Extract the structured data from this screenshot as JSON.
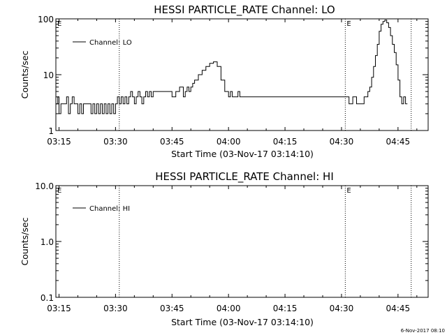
{
  "figure": {
    "footer_stamp": "6-Nov-2017 08:10"
  },
  "chart_data": [
    {
      "type": "line",
      "title": "HESSI PARTICLE_RATE Channel: LO",
      "xlabel": "Start Time (03-Nov-17 03:14:10)",
      "ylabel": "Counts/sec",
      "y_scale": "log",
      "xlim": [
        "03:14:10",
        "04:53:00"
      ],
      "ylim": [
        1,
        100
      ],
      "x_ticks": [
        "03:15",
        "03:30",
        "03:45",
        "04:00",
        "04:15",
        "04:30",
        "04:45"
      ],
      "y_ticks": [
        "1",
        "10",
        "100"
      ],
      "legend": {
        "label": "Channel: LO",
        "placement": "top-left"
      },
      "grid": false,
      "event_lines": [
        {
          "time": "03:31:00",
          "label": ""
        },
        {
          "time": "04:31:00",
          "label": "E"
        },
        {
          "time": "04:48:30",
          "label": ""
        }
      ],
      "corner_marks": [
        "E"
      ],
      "series": [
        {
          "name": "Channel: LO",
          "x": [
            "03:14:10",
            "03:14:40",
            "03:15:00",
            "03:15:30",
            "03:16:00",
            "03:16:30",
            "03:17:00",
            "03:17:30",
            "03:18:00",
            "03:18:30",
            "03:19:00",
            "03:19:30",
            "03:20:00",
            "03:20:30",
            "03:21:00",
            "03:21:30",
            "03:22:00",
            "03:22:30",
            "03:23:00",
            "03:23:30",
            "03:24:00",
            "03:24:30",
            "03:25:00",
            "03:25:30",
            "03:26:00",
            "03:26:30",
            "03:27:00",
            "03:27:30",
            "03:28:00",
            "03:28:30",
            "03:29:00",
            "03:29:30",
            "03:30:00",
            "03:30:30",
            "03:31:00",
            "03:31:30",
            "03:32:00",
            "03:32:30",
            "03:33:00",
            "03:33:30",
            "03:34:00",
            "03:34:30",
            "03:35:00",
            "03:35:30",
            "03:36:00",
            "03:36:30",
            "03:37:00",
            "03:37:30",
            "03:38:00",
            "03:38:30",
            "03:39:00",
            "03:39:30",
            "03:40:00",
            "03:41:00",
            "03:42:00",
            "03:43:00",
            "03:44:00",
            "03:45:00",
            "03:46:00",
            "03:47:00",
            "03:48:00",
            "03:48:30",
            "03:49:00",
            "03:49:30",
            "03:50:00",
            "03:50:30",
            "03:51:00",
            "03:52:00",
            "03:53:00",
            "03:54:00",
            "03:55:00",
            "03:56:00",
            "03:57:00",
            "03:58:00",
            "03:59:00",
            "04:00:00",
            "04:00:30",
            "04:01:00",
            "04:01:30",
            "04:02:00",
            "04:02:30",
            "04:03:00",
            "04:03:30",
            "04:04:00",
            "04:05:00",
            "04:06:00",
            "04:07:00",
            "04:08:00",
            "04:09:00",
            "04:10:00",
            "04:11:00",
            "04:12:00",
            "04:13:00",
            "04:14:00",
            "04:15:00",
            "04:16:00",
            "04:17:00",
            "04:18:00",
            "04:19:00",
            "04:20:00",
            "04:21:00",
            "04:22:00",
            "04:23:00",
            "04:24:00",
            "04:25:00",
            "04:26:00",
            "04:27:00",
            "04:28:00",
            "04:29:00",
            "04:30:00",
            "04:31:00",
            "04:32:00",
            "04:33:00",
            "04:34:00",
            "04:35:00",
            "04:36:00",
            "04:37:00",
            "04:37:30",
            "04:38:00",
            "04:38:30",
            "04:39:00",
            "04:39:30",
            "04:40:00",
            "04:40:30",
            "04:41:00",
            "04:41:30",
            "04:42:00",
            "04:42:30",
            "04:43:00",
            "04:43:30",
            "04:44:00",
            "04:44:30",
            "04:45:00",
            "04:45:30",
            "04:46:00",
            "04:46:30",
            "04:47:00",
            "04:47:30"
          ],
          "values": [
            3,
            4,
            2,
            3,
            3,
            3,
            4,
            2,
            3,
            4,
            3,
            3,
            2,
            3,
            2,
            3,
            3,
            3,
            3,
            2,
            3,
            2,
            3,
            2,
            3,
            2,
            3,
            2,
            3,
            2,
            3,
            2,
            3,
            4,
            3,
            4,
            3,
            4,
            3,
            4,
            5,
            4,
            3,
            4,
            5,
            4,
            3,
            4,
            5,
            4,
            5,
            4,
            5,
            5,
            5,
            5,
            5,
            4,
            5,
            6,
            4,
            5,
            6,
            5,
            6,
            7,
            8,
            10,
            12,
            14,
            16,
            17,
            14,
            8,
            5,
            4,
            5,
            4,
            4,
            4,
            5,
            4,
            4,
            4,
            4,
            4,
            4,
            4,
            4,
            4,
            4,
            4,
            4,
            4,
            4,
            4,
            4,
            4,
            4,
            4,
            4,
            4,
            4,
            4,
            4,
            4,
            4,
            4,
            4,
            4,
            4,
            3,
            4,
            3,
            3,
            4,
            5,
            6,
            9,
            14,
            22,
            35,
            60,
            80,
            90,
            95,
            85,
            70,
            50,
            35,
            25,
            15,
            8,
            4,
            3,
            4,
            3,
            3
          ]
        }
      ]
    },
    {
      "type": "line",
      "title": "HESSI PARTICLE_RATE Channel: HI",
      "xlabel": "Start Time (03-Nov-17 03:14:10)",
      "ylabel": "Counts/sec",
      "y_scale": "log",
      "xlim": [
        "03:14:10",
        "04:53:00"
      ],
      "ylim": [
        0.1,
        10
      ],
      "x_ticks": [
        "03:15",
        "03:30",
        "03:45",
        "04:00",
        "04:15",
        "04:30",
        "04:45"
      ],
      "y_ticks": [
        "0.1",
        "1.0",
        "10.0"
      ],
      "legend": {
        "label": "Channel: HI",
        "placement": "top-left"
      },
      "grid": false,
      "event_lines": [
        {
          "time": "03:31:00",
          "label": ""
        },
        {
          "time": "04:31:00",
          "label": "E"
        },
        {
          "time": "04:48:30",
          "label": ""
        }
      ],
      "corner_marks": [
        "E"
      ],
      "series": [
        {
          "name": "Channel: HI",
          "x": [],
          "values": []
        }
      ]
    }
  ]
}
